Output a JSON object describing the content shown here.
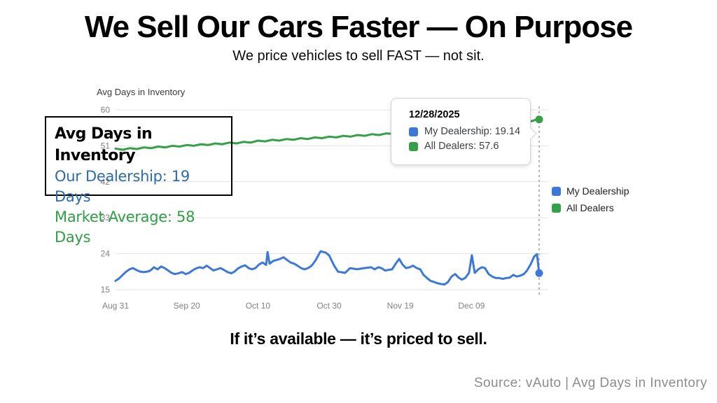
{
  "slide": {
    "title": "We Sell Our Cars Faster — On Purpose",
    "subtitle": "We price vehicles to sell FAST — not sit.",
    "statement": "If it’s available — it’s priced to sell.",
    "source": "Source: vAuto | Avg Days in Inventory"
  },
  "callout": {
    "title": "Avg Days in Inventory",
    "line1": "Our Dealership: 19 Days",
    "line2": "Market Average: 58 Days",
    "line1_color": "#2A6CAD",
    "line2_color": "#2F9E44"
  },
  "tooltip": {
    "date": "12/28/2025",
    "rows": [
      {
        "label": "My Dealership: 19.14",
        "color": "#3C78D8"
      },
      {
        "label": "All Dealers: 57.6",
        "color": "#34A047"
      }
    ]
  },
  "legend": [
    {
      "label": "My Dealership",
      "color": "#3C78D8"
    },
    {
      "label": "All Dealers",
      "color": "#34A047"
    }
  ],
  "chart_data": {
    "type": "line",
    "title": "Avg Days in Inventory",
    "xlabel": "",
    "ylabel": "Avg Days in Inventory",
    "ylim": [
      15,
      60
    ],
    "yticks": [
      60,
      51,
      42,
      33,
      24,
      15
    ],
    "xticks": [
      {
        "label": "Aug 31",
        "day": 0
      },
      {
        "label": "Sep 20",
        "day": 20
      },
      {
        "label": "Oct 10",
        "day": 40
      },
      {
        "label": "Oct 30",
        "day": 60
      },
      {
        "label": "Nov 19",
        "day": 80
      },
      {
        "label": "Dec 09",
        "day": 100
      }
    ],
    "grid": true,
    "legend_position": "right",
    "reference_line": {
      "day": 119,
      "date": "12/28/2025",
      "style": "dashed",
      "color": "#9e9e9e"
    },
    "series": [
      {
        "name": "My Dealership",
        "color": "#3C78D8",
        "end_value": 19.14,
        "points": [
          [
            0,
            17.2
          ],
          [
            1,
            17.8
          ],
          [
            2,
            18.7
          ],
          [
            3,
            19.5
          ],
          [
            3.9,
            20.1
          ],
          [
            4.9,
            20.4
          ],
          [
            5.9,
            19.9
          ],
          [
            6.9,
            19.5
          ],
          [
            7.9,
            19.4
          ],
          [
            8.9,
            19.5
          ],
          [
            9.8,
            19.8
          ],
          [
            10.8,
            20.6
          ],
          [
            11.8,
            20.1
          ],
          [
            12.8,
            20.8
          ],
          [
            13.8,
            20.4
          ],
          [
            14.8,
            19.8
          ],
          [
            15.7,
            19.2
          ],
          [
            16.7,
            18.9
          ],
          [
            17.7,
            19.1
          ],
          [
            18.7,
            19.4
          ],
          [
            19.7,
            18.9
          ],
          [
            20.7,
            19.2
          ],
          [
            21.6,
            19.8
          ],
          [
            22.6,
            20.3
          ],
          [
            23.6,
            20.6
          ],
          [
            24.6,
            20.4
          ],
          [
            25.6,
            21.0
          ],
          [
            26.6,
            20.4
          ],
          [
            27.5,
            19.8
          ],
          [
            28.5,
            20.1
          ],
          [
            29.5,
            20.4
          ],
          [
            30.5,
            19.9
          ],
          [
            31.5,
            19.4
          ],
          [
            32.5,
            19.1
          ],
          [
            33.4,
            19.5
          ],
          [
            34.4,
            20.3
          ],
          [
            35.4,
            20.8
          ],
          [
            36.4,
            21.1
          ],
          [
            37.4,
            20.4
          ],
          [
            38.4,
            20.1
          ],
          [
            39.3,
            20.4
          ],
          [
            40.3,
            21.3
          ],
          [
            41.3,
            21.8
          ],
          [
            42.3,
            21.2
          ],
          [
            42.7,
            24.4
          ],
          [
            43.3,
            21.5
          ],
          [
            44.3,
            22.2
          ],
          [
            45.2,
            22.4
          ],
          [
            46.2,
            22.7
          ],
          [
            47.2,
            23.1
          ],
          [
            48.2,
            22.4
          ],
          [
            49.2,
            21.8
          ],
          [
            50.2,
            21.5
          ],
          [
            51.1,
            21.0
          ],
          [
            52.1,
            20.4
          ],
          [
            53.1,
            20.1
          ],
          [
            54.1,
            20.4
          ],
          [
            55.1,
            21.0
          ],
          [
            56.1,
            22.2
          ],
          [
            57.6,
            24.6
          ],
          [
            59,
            24.3
          ],
          [
            60,
            23.6
          ],
          [
            61.4,
            21.0
          ],
          [
            62.5,
            19.5
          ],
          [
            64.5,
            19.2
          ],
          [
            65.9,
            20.4
          ],
          [
            67.9,
            20.1
          ],
          [
            69.8,
            20.4
          ],
          [
            71.8,
            20.6
          ],
          [
            72.8,
            20.1
          ],
          [
            73.8,
            20.6
          ],
          [
            74.7,
            20.4
          ],
          [
            75.7,
            19.8
          ],
          [
            77.7,
            20.1
          ],
          [
            78.7,
            21.5
          ],
          [
            79.7,
            22.7
          ],
          [
            80.6,
            21.3
          ],
          [
            81.6,
            20.4
          ],
          [
            82.6,
            20.6
          ],
          [
            83.6,
            21.0
          ],
          [
            84.6,
            20.4
          ],
          [
            85.6,
            20.1
          ],
          [
            86.5,
            18.7
          ],
          [
            87.5,
            17.9
          ],
          [
            88.5,
            17.2
          ],
          [
            89.5,
            16.9
          ],
          [
            90.5,
            16.6
          ],
          [
            91.5,
            16.4
          ],
          [
            92.4,
            16.3
          ],
          [
            93.4,
            16.9
          ],
          [
            94.4,
            18.3
          ],
          [
            95.4,
            18.9
          ],
          [
            96.4,
            18.0
          ],
          [
            97.3,
            17.5
          ],
          [
            98.3,
            18.0
          ],
          [
            99.3,
            19.2
          ],
          [
            100.1,
            23.6
          ],
          [
            100.9,
            19.2
          ],
          [
            101.9,
            20.1
          ],
          [
            102.9,
            20.6
          ],
          [
            103.8,
            20.4
          ],
          [
            104.8,
            18.9
          ],
          [
            105.8,
            18.3
          ],
          [
            106.8,
            17.9
          ],
          [
            107.8,
            17.9
          ],
          [
            108.8,
            17.7
          ],
          [
            109.7,
            17.9
          ],
          [
            110.7,
            18.0
          ],
          [
            111.7,
            18.7
          ],
          [
            112.7,
            18.3
          ],
          [
            113.7,
            18.5
          ],
          [
            114.7,
            18.9
          ],
          [
            115.6,
            19.8
          ],
          [
            116.6,
            21.3
          ],
          [
            117.6,
            23.3
          ],
          [
            118.4,
            23.9
          ],
          [
            119,
            19.14
          ]
        ]
      },
      {
        "name": "All Dealers",
        "color": "#34A047",
        "end_value": 57.6,
        "points": [
          [
            0,
            50.3
          ],
          [
            2,
            50.0
          ],
          [
            4,
            50.4
          ],
          [
            6,
            50.2
          ],
          [
            8,
            50.6
          ],
          [
            10,
            50.4
          ],
          [
            12,
            50.8
          ],
          [
            14,
            50.6
          ],
          [
            16,
            51.0
          ],
          [
            18,
            50.8
          ],
          [
            20,
            51.2
          ],
          [
            22,
            51.0
          ],
          [
            24,
            51.4
          ],
          [
            26,
            51.2
          ],
          [
            28,
            51.6
          ],
          [
            30,
            51.4
          ],
          [
            32,
            51.8
          ],
          [
            34,
            51.6
          ],
          [
            36,
            52.0
          ],
          [
            38,
            51.8
          ],
          [
            40,
            52.3
          ],
          [
            42,
            52.1
          ],
          [
            44,
            52.5
          ],
          [
            46,
            52.3
          ],
          [
            48,
            52.7
          ],
          [
            50,
            52.5
          ],
          [
            52,
            52.9
          ],
          [
            54,
            52.7
          ],
          [
            56,
            53.1
          ],
          [
            58,
            52.9
          ],
          [
            60,
            53.3
          ],
          [
            62,
            53.1
          ],
          [
            64,
            53.5
          ],
          [
            66,
            53.3
          ],
          [
            68,
            53.7
          ],
          [
            70,
            53.5
          ],
          [
            72,
            53.9
          ],
          [
            74,
            53.7
          ],
          [
            76,
            54.1
          ],
          [
            78,
            54.0
          ],
          [
            80,
            54.3
          ],
          [
            82,
            54.2
          ],
          [
            84,
            54.6
          ],
          [
            86,
            54.4
          ],
          [
            88,
            54.8
          ],
          [
            90,
            54.7
          ],
          [
            92,
            55.0
          ],
          [
            94,
            54.9
          ],
          [
            96,
            55.3
          ],
          [
            98,
            55.2
          ],
          [
            100,
            55.6
          ],
          [
            102,
            55.5
          ],
          [
            104,
            55.9
          ],
          [
            106,
            55.8
          ],
          [
            108,
            56.2
          ],
          [
            110,
            56.1
          ],
          [
            112,
            56.5
          ],
          [
            114,
            56.6
          ],
          [
            116,
            57.0
          ],
          [
            117,
            57.2
          ],
          [
            118,
            57.5
          ],
          [
            119,
            57.6
          ]
        ]
      }
    ]
  }
}
